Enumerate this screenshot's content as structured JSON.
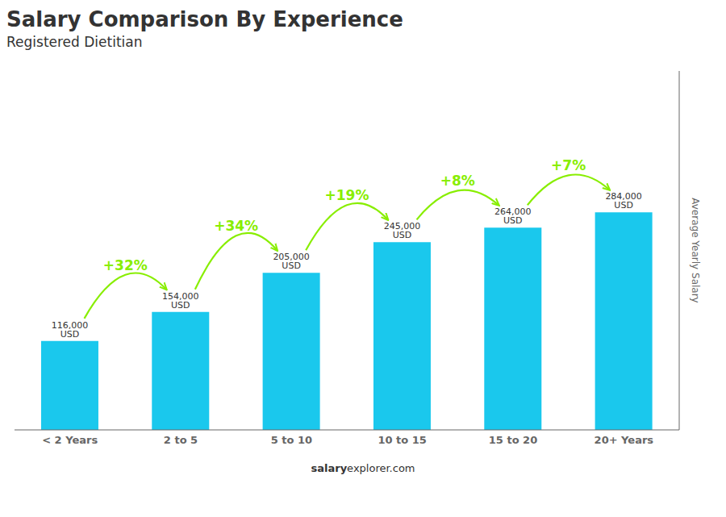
{
  "chart_data": {
    "type": "bar",
    "title": "Salary Comparison By Experience",
    "subtitle": "Registered Dietitian",
    "categories": [
      "< 2 Years",
      "2 to 5",
      "5 to 10",
      "10 to 15",
      "15 to 20",
      "20+ Years"
    ],
    "values": [
      116000,
      154000,
      205000,
      245000,
      264000,
      284000
    ],
    "value_labels": [
      "116,000 USD",
      "154,000 USD",
      "205,000 USD",
      "245,000 USD",
      "264,000 USD",
      "284,000 USD"
    ],
    "data_labels": true,
    "color": "#1ac8ed",
    "ylim": [
      0,
      468600
    ],
    "y_label": "Average Yearly Salary",
    "tick_labels": "x",
    "grid": false,
    "annotations": [
      {
        "text": "+32%",
        "from": "< 2 Years",
        "to": "2 to 5",
        "color": "#88ee00"
      },
      {
        "text": "+34%",
        "from": "2 to 5",
        "to": "5 to 10",
        "color": "#88ee00"
      },
      {
        "text": "+19%",
        "from": "5 to 10",
        "to": "10 to 15",
        "color": "#88ee00"
      },
      {
        "text": "+8%",
        "from": "10 to 15",
        "to": "15 to 20",
        "color": "#88ee00"
      },
      {
        "text": "+7%",
        "from": "15 to 20",
        "to": "20+ Years",
        "color": "#88ee00"
      }
    ],
    "footer": [
      "salary",
      "explorer.com"
    ]
  }
}
